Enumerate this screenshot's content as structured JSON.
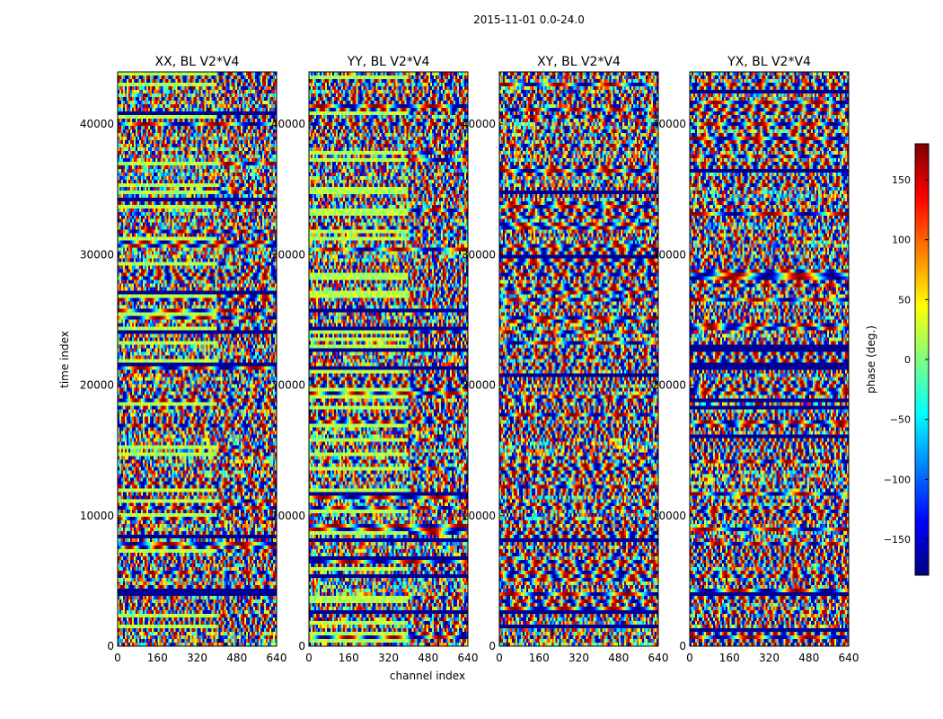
{
  "chart_data": {
    "type": "heatmap",
    "title": "2015-11-01 0.0-24.0",
    "xlabel": "channel index",
    "ylabel": "time index",
    "xlim": [
      0,
      640
    ],
    "ylim": [
      0,
      44000
    ],
    "x_ticks": [
      0,
      160,
      320,
      480,
      640
    ],
    "x_tick_labels": [
      "0",
      "160",
      "320",
      "480",
      "640"
    ],
    "y_ticks": [
      0,
      10000,
      20000,
      30000,
      40000
    ],
    "y_tick_labels": [
      "0",
      "10000",
      "20000",
      "30000",
      "40000"
    ],
    "colormap": "jet",
    "colorbar": {
      "label": "phase (deg.)",
      "range": [
        -180,
        180
      ],
      "ticks": [
        150,
        100,
        50,
        0,
        -50,
        -100,
        -150
      ],
      "tick_labels": [
        "150",
        "100",
        "50",
        "0",
        "−50",
        "−100",
        "−150"
      ]
    },
    "panels": [
      {
        "name": "xx",
        "title": "XX, BL V2*V4"
      },
      {
        "name": "yy",
        "title": "YY, BL V2*V4"
      },
      {
        "name": "xy",
        "title": "XY, BL V2*V4"
      },
      {
        "name": "yx",
        "title": "YX, BL V2*V4"
      }
    ]
  }
}
